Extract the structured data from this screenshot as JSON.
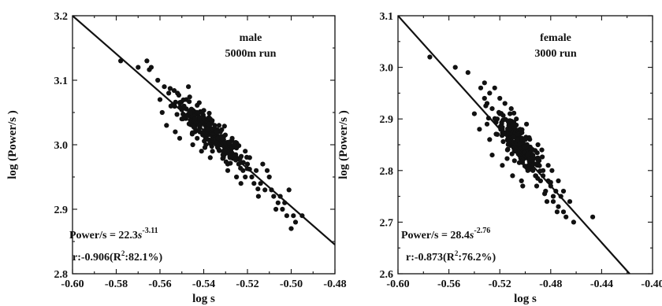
{
  "chart_data": [
    {
      "type": "scatter",
      "xlabel": "log s",
      "ylabel": "log (Power/s )",
      "xlim": [
        -0.6,
        -0.48
      ],
      "ylim": [
        2.8,
        3.2
      ],
      "xticks": [
        "-0.60",
        "-0.58",
        "-0.56",
        "-0.54",
        "-0.52",
        "-0.50",
        "-0.48"
      ],
      "yticks": [
        "2.8",
        "2.9",
        "3.0",
        "3.1",
        "3.2"
      ],
      "annotation": [
        "male",
        "5000m run"
      ],
      "equation": {
        "lhs": "Power/s",
        "eq": " = 22.3",
        "var": "s",
        "exp": "-3.11"
      },
      "stats": {
        "prefix": "r:-0.906(R",
        "sup": "2",
        "suffix": ":82.1%)"
      },
      "fit_line": {
        "x": [
          -0.6,
          -0.48
        ],
        "y": [
          3.2,
          2.845
        ]
      },
      "points": {
        "x": [
          -0.578,
          -0.57,
          -0.566,
          -0.564,
          -0.561,
          -0.56,
          -0.558,
          -0.556,
          -0.555,
          -0.552,
          -0.55,
          -0.548,
          -0.546,
          -0.544,
          -0.542,
          -0.54,
          -0.538,
          -0.536,
          -0.534,
          -0.532,
          -0.53,
          -0.528,
          -0.526,
          -0.524,
          -0.522,
          -0.52,
          -0.518,
          -0.516,
          -0.514,
          -0.512,
          -0.51,
          -0.508,
          -0.506,
          -0.504,
          -0.502,
          -0.5,
          -0.498,
          -0.495,
          -0.559,
          -0.557,
          -0.553,
          -0.549,
          -0.545,
          -0.541,
          -0.537,
          -0.533,
          -0.529,
          -0.525,
          -0.521,
          -0.517,
          -0.513,
          -0.509,
          -0.505,
          -0.543,
          -0.539,
          -0.535,
          -0.531,
          -0.527,
          -0.523,
          -0.519,
          -0.547,
          -0.551,
          -0.555,
          -0.545,
          -0.541,
          -0.537,
          -0.533,
          -0.529,
          -0.525,
          -0.521,
          -0.515,
          -0.511,
          -0.507,
          -0.503,
          -0.501,
          -0.499,
          -0.544,
          -0.54,
          -0.536
        ],
        "y": [
          3.13,
          3.12,
          3.13,
          3.12,
          3.1,
          3.07,
          3.09,
          3.08,
          3.06,
          3.08,
          3.04,
          3.07,
          3.05,
          3.04,
          3.03,
          3.02,
          3.04,
          3.01,
          3.02,
          3.0,
          2.99,
          2.98,
          3.0,
          2.97,
          2.96,
          2.97,
          2.95,
          2.96,
          2.94,
          2.93,
          2.95,
          2.92,
          2.91,
          2.9,
          2.89,
          2.87,
          2.88,
          2.89,
          3.05,
          3.03,
          3.02,
          3.06,
          3.0,
          3.05,
          2.98,
          3.03,
          2.97,
          2.95,
          2.99,
          2.94,
          2.97,
          2.93,
          2.92,
          3.01,
          3.0,
          3.03,
          2.98,
          3.01,
          2.94,
          2.98,
          3.09,
          3.01,
          3.06,
          3.03,
          2.99,
          3.04,
          3.0,
          2.96,
          2.98,
          2.95,
          2.92,
          2.96,
          2.9,
          2.91,
          2.93,
          2.89,
          3.02,
          3.04,
          2.99
        ]
      },
      "cloud": {
        "center": [
          -0.537,
          3.02
        ],
        "spread": [
          0.008,
          0.022
        ],
        "count": 220
      }
    },
    {
      "type": "scatter",
      "xlabel": "log s",
      "ylabel": "log (Power/s )",
      "xlim": [
        -0.6,
        -0.4
      ],
      "ylim": [
        2.6,
        3.1
      ],
      "xticks": [
        "-0.60",
        "-0.56",
        "-0.52",
        "-0.48",
        "-0.44",
        "-0.40"
      ],
      "yticks": [
        "2.6",
        "2.7",
        "2.8",
        "2.9",
        "3.0",
        "3.1"
      ],
      "annotation": [
        "female",
        "3000 run"
      ],
      "equation": {
        "lhs": "Power/s",
        "eq": " = 28.4",
        "var": "s",
        "exp": "-2.76"
      },
      "stats": {
        "prefix": "r:-0.873(R",
        "sup": "2",
        "suffix": ":76.2%)"
      },
      "fit_line": {
        "x": [
          -0.6,
          -0.418
        ],
        "y": [
          3.1,
          2.6
        ]
      },
      "points": {
        "x": [
          -0.575,
          -0.555,
          -0.545,
          -0.54,
          -0.535,
          -0.532,
          -0.53,
          -0.528,
          -0.526,
          -0.524,
          -0.522,
          -0.52,
          -0.518,
          -0.516,
          -0.514,
          -0.512,
          -0.51,
          -0.508,
          -0.506,
          -0.504,
          -0.502,
          -0.5,
          -0.498,
          -0.496,
          -0.494,
          -0.492,
          -0.49,
          -0.488,
          -0.486,
          -0.484,
          -0.482,
          -0.48,
          -0.478,
          -0.476,
          -0.474,
          -0.472,
          -0.47,
          -0.468,
          -0.465,
          -0.462,
          -0.447,
          -0.53,
          -0.526,
          -0.522,
          -0.518,
          -0.514,
          -0.51,
          -0.506,
          -0.502,
          -0.498,
          -0.494,
          -0.49,
          -0.486,
          -0.482,
          -0.478,
          -0.474,
          -0.47,
          -0.511,
          -0.507,
          -0.503,
          -0.499,
          -0.495,
          -0.491,
          -0.487,
          -0.483,
          -0.479,
          -0.475,
          -0.528,
          -0.52,
          -0.536,
          -0.532
        ],
        "y": [
          3.02,
          3.0,
          2.99,
          2.91,
          2.96,
          2.97,
          2.93,
          2.95,
          2.92,
          2.96,
          2.9,
          2.94,
          2.88,
          2.93,
          2.86,
          2.91,
          2.89,
          2.84,
          2.87,
          2.88,
          2.82,
          2.86,
          2.8,
          2.84,
          2.83,
          2.79,
          2.82,
          2.78,
          2.8,
          2.76,
          2.78,
          2.77,
          2.74,
          2.76,
          2.73,
          2.75,
          2.72,
          2.71,
          2.74,
          2.7,
          2.71,
          2.89,
          2.83,
          2.87,
          2.81,
          2.84,
          2.79,
          2.86,
          2.77,
          2.83,
          2.8,
          2.85,
          2.79,
          2.81,
          2.75,
          2.78,
          2.76,
          2.92,
          2.9,
          2.78,
          2.89,
          2.84,
          2.77,
          2.84,
          2.74,
          2.8,
          2.72,
          2.86,
          2.91,
          2.88,
          2.94
        ]
      },
      "cloud": {
        "center": [
          -0.505,
          2.85
        ],
        "spread": [
          0.009,
          0.028
        ],
        "count": 200
      }
    }
  ]
}
